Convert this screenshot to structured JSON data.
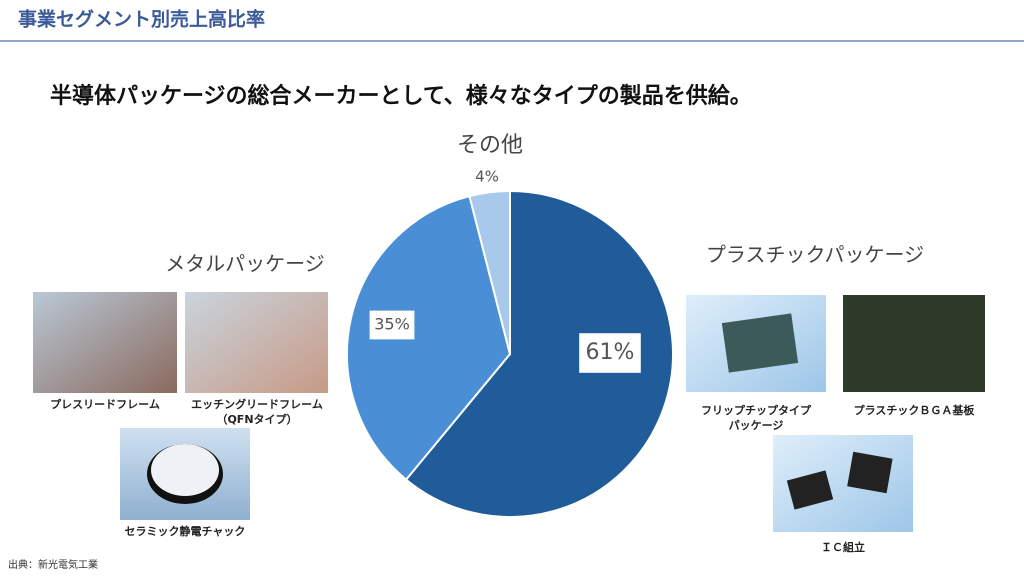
{
  "header": {
    "title": "事業セグメント別売上高比率"
  },
  "chart_data": {
    "type": "pie",
    "title": "半導体パッケージの総合メーカーとして、様々なタイプの製品を供給。",
    "categories": [
      "プラスチックパッケージ",
      "メタルパッケージ",
      "その他"
    ],
    "values": [
      61,
      35,
      4
    ],
    "value_labels": [
      "61%",
      "35%",
      "4%"
    ],
    "colors": [
      "#1f5c99",
      "#4a8fd6",
      "#a9c9ec"
    ]
  },
  "images": [
    {
      "caption": [
        "プレスリードフレーム"
      ]
    },
    {
      "caption": [
        "エッチングリードフレーム",
        "（QFNタイプ）"
      ]
    },
    {
      "caption": [
        "セラミック静電チャック"
      ]
    },
    {
      "caption": [
        "フリップチップタイプ",
        "パッケージ"
      ]
    },
    {
      "caption": [
        "プラスチックＢＧＡ基板"
      ]
    },
    {
      "caption": [
        "ＩＣ組立"
      ]
    }
  ],
  "source": "出典：新光電気工業"
}
